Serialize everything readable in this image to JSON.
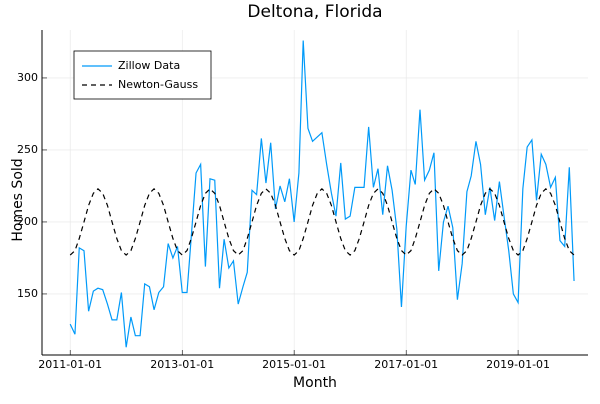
{
  "chart_data": {
    "type": "line",
    "title": "Deltona, Florida",
    "xlabel": "Month",
    "ylabel": "Homes Sold",
    "x": [
      "2011-01-01",
      "2011-02-01",
      "2011-03-01",
      "2011-04-01",
      "2011-05-01",
      "2011-06-01",
      "2011-07-01",
      "2011-08-01",
      "2011-09-01",
      "2011-10-01",
      "2011-11-01",
      "2011-12-01",
      "2012-01-01",
      "2012-02-01",
      "2012-03-01",
      "2012-04-01",
      "2012-05-01",
      "2012-06-01",
      "2012-07-01",
      "2012-08-01",
      "2012-09-01",
      "2012-10-01",
      "2012-11-01",
      "2012-12-01",
      "2013-01-01",
      "2013-02-01",
      "2013-03-01",
      "2013-04-01",
      "2013-05-01",
      "2013-06-01",
      "2013-07-01",
      "2013-08-01",
      "2013-09-01",
      "2013-10-01",
      "2013-11-01",
      "2013-12-01",
      "2014-01-01",
      "2014-02-01",
      "2014-03-01",
      "2014-04-01",
      "2014-05-01",
      "2014-06-01",
      "2014-07-01",
      "2014-08-01",
      "2014-09-01",
      "2014-10-01",
      "2014-11-01",
      "2014-12-01",
      "2015-01-01",
      "2015-02-01",
      "2015-03-01",
      "2015-04-01",
      "2015-05-01",
      "2015-06-01",
      "2015-07-01",
      "2015-08-01",
      "2015-09-01",
      "2015-10-01",
      "2015-11-01",
      "2015-12-01",
      "2016-01-01",
      "2016-02-01",
      "2016-03-01",
      "2016-04-01",
      "2016-05-01",
      "2016-06-01",
      "2016-07-01",
      "2016-08-01",
      "2016-09-01",
      "2016-10-01",
      "2016-11-01",
      "2016-12-01",
      "2017-01-01",
      "2017-02-01",
      "2017-03-01",
      "2017-04-01",
      "2017-05-01",
      "2017-06-01",
      "2017-07-01",
      "2017-08-01",
      "2017-09-01",
      "2017-10-01",
      "2017-11-01",
      "2017-12-01",
      "2018-01-01",
      "2018-02-01",
      "2018-03-01",
      "2018-04-01",
      "2018-05-01",
      "2018-06-01",
      "2018-07-01",
      "2018-08-01",
      "2018-09-01",
      "2018-10-01",
      "2018-11-01",
      "2018-12-01",
      "2019-01-01",
      "2019-02-01",
      "2019-03-01",
      "2019-04-01",
      "2019-05-01",
      "2019-06-01",
      "2019-07-01",
      "2019-08-01",
      "2019-09-01",
      "2019-10-01",
      "2019-11-01",
      "2019-12-01",
      "2020-01-01"
    ],
    "series": [
      {
        "name": "Zillow Data",
        "color": "#009af9",
        "linestyle": "solid",
        "values": [
          129,
          122,
          182,
          180,
          138,
          152,
          154,
          153,
          143,
          132,
          132,
          151,
          113,
          134,
          121,
          121,
          157,
          155,
          139,
          151,
          155,
          185,
          175,
          183,
          151,
          151,
          190,
          234,
          240,
          169,
          230,
          229,
          154,
          188,
          168,
          173,
          143,
          155,
          165,
          222,
          219,
          258,
          227,
          255,
          209,
          225,
          214,
          230,
          200,
          234,
          326,
          265,
          256,
          259,
          262,
          240,
          220,
          204,
          241,
          202,
          204,
          224,
          224,
          224,
          266,
          224,
          237,
          205,
          239,
          222,
          195,
          141,
          197,
          236,
          226,
          278,
          229,
          236,
          248,
          166,
          200,
          211,
          196,
          146,
          171,
          221,
          232,
          256,
          240,
          205,
          224,
          201,
          228,
          204,
          180,
          150,
          144,
          223,
          252,
          257,
          215,
          247,
          240,
          224,
          231,
          187,
          183,
          238,
          159
        ]
      },
      {
        "name": "Newton-Gauss",
        "color": "#000000",
        "linestyle": "dashed",
        "values": [
          177,
          180.1,
          188.5,
          200,
          211.5,
          219.9,
          223,
          219.9,
          211.5,
          200,
          188.5,
          180.1,
          177,
          180.1,
          188.5,
          200,
          211.5,
          219.9,
          223,
          219.9,
          211.5,
          200,
          188.5,
          180.1,
          177,
          180.1,
          188.5,
          200,
          211.5,
          219.9,
          223,
          219.9,
          211.5,
          200,
          188.5,
          180.1,
          177,
          180.1,
          188.5,
          200,
          211.5,
          219.9,
          223,
          219.9,
          211.5,
          200,
          188.5,
          180.1,
          177,
          180.1,
          188.5,
          200,
          211.5,
          219.9,
          223,
          219.9,
          211.5,
          200,
          188.5,
          180.1,
          177,
          180.1,
          188.5,
          200,
          211.5,
          219.9,
          223,
          219.9,
          211.5,
          200,
          188.5,
          180.1,
          177,
          180.1,
          188.5,
          200,
          211.5,
          219.9,
          223,
          219.9,
          211.5,
          200,
          188.5,
          180.1,
          177,
          180.1,
          188.5,
          200,
          211.5,
          219.9,
          223,
          219.9,
          211.5,
          200,
          188.5,
          180.1,
          177,
          180.1,
          188.5,
          200,
          211.5,
          219.9,
          223,
          219.9,
          211.5,
          200,
          188.5,
          180.1,
          177
        ]
      }
    ],
    "xlim": [
      "2010-07-01",
      "2020-04-01"
    ],
    "xticks": [
      "2011-01-01",
      "2013-01-01",
      "2015-01-01",
      "2017-01-01",
      "2019-01-01"
    ],
    "ylim": [
      107.6,
      333.3
    ],
    "yticks": [
      150,
      200,
      250,
      300
    ],
    "grid": true,
    "legend": "top-left"
  }
}
